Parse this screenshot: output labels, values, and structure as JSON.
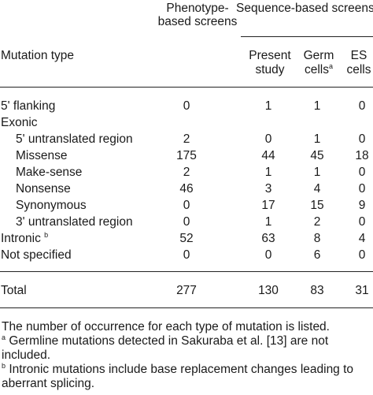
{
  "headers": {
    "mutation_type": "Mutation type",
    "phenotype_group": [
      "Phenotype-",
      "based screens"
    ],
    "sequence_group": "Sequence-based screens",
    "present_study": [
      "Present",
      "study"
    ],
    "germ_cells": [
      "Germ",
      "cells"
    ],
    "germ_cells_sup": "a",
    "es_cells": [
      "ES",
      "cells"
    ]
  },
  "rows": [
    {
      "label": "5' flanking",
      "sup": "",
      "pheno": "0",
      "present": "1",
      "germ": "1",
      "es": "0"
    },
    {
      "label": "Exonic",
      "sup": "",
      "pheno": "",
      "present": "",
      "germ": "",
      "es": ""
    },
    {
      "label": "5' untranslated region",
      "sup": "",
      "pheno": "2",
      "present": "0",
      "germ": "1",
      "es": "0"
    },
    {
      "label": "Missense",
      "sup": "",
      "pheno": "175",
      "present": "44",
      "germ": "45",
      "es": "18"
    },
    {
      "label": "Make-sense",
      "sup": "",
      "pheno": "2",
      "present": "1",
      "germ": "1",
      "es": "0"
    },
    {
      "label": "Nonsense",
      "sup": "",
      "pheno": "46",
      "present": "3",
      "germ": "4",
      "es": "0"
    },
    {
      "label": "Synonymous",
      "sup": "",
      "pheno": "0",
      "present": "17",
      "germ": "15",
      "es": "9"
    },
    {
      "label": "3' untranslated region",
      "sup": "",
      "pheno": "0",
      "present": "1",
      "germ": "2",
      "es": "0"
    },
    {
      "label": "Intronic",
      "sup": "b",
      "pheno": "52",
      "present": "63",
      "germ": "8",
      "es": "4"
    },
    {
      "label": "Not specified",
      "sup": "",
      "pheno": "0",
      "present": "0",
      "germ": "6",
      "es": "0"
    }
  ],
  "total": {
    "label": "Total",
    "pheno": "277",
    "present": "130",
    "germ": "83",
    "es": "31"
  },
  "footnotes": {
    "main": "The number of occurrence for each type of mutation is listed.",
    "a_sup": "a",
    "a_text": " Germline mutations detected in Sakuraba et al. [13] are not included.",
    "b_sup": "b",
    "b_text": " Intronic mutations include base replacement changes leading to aberrant splicing."
  }
}
